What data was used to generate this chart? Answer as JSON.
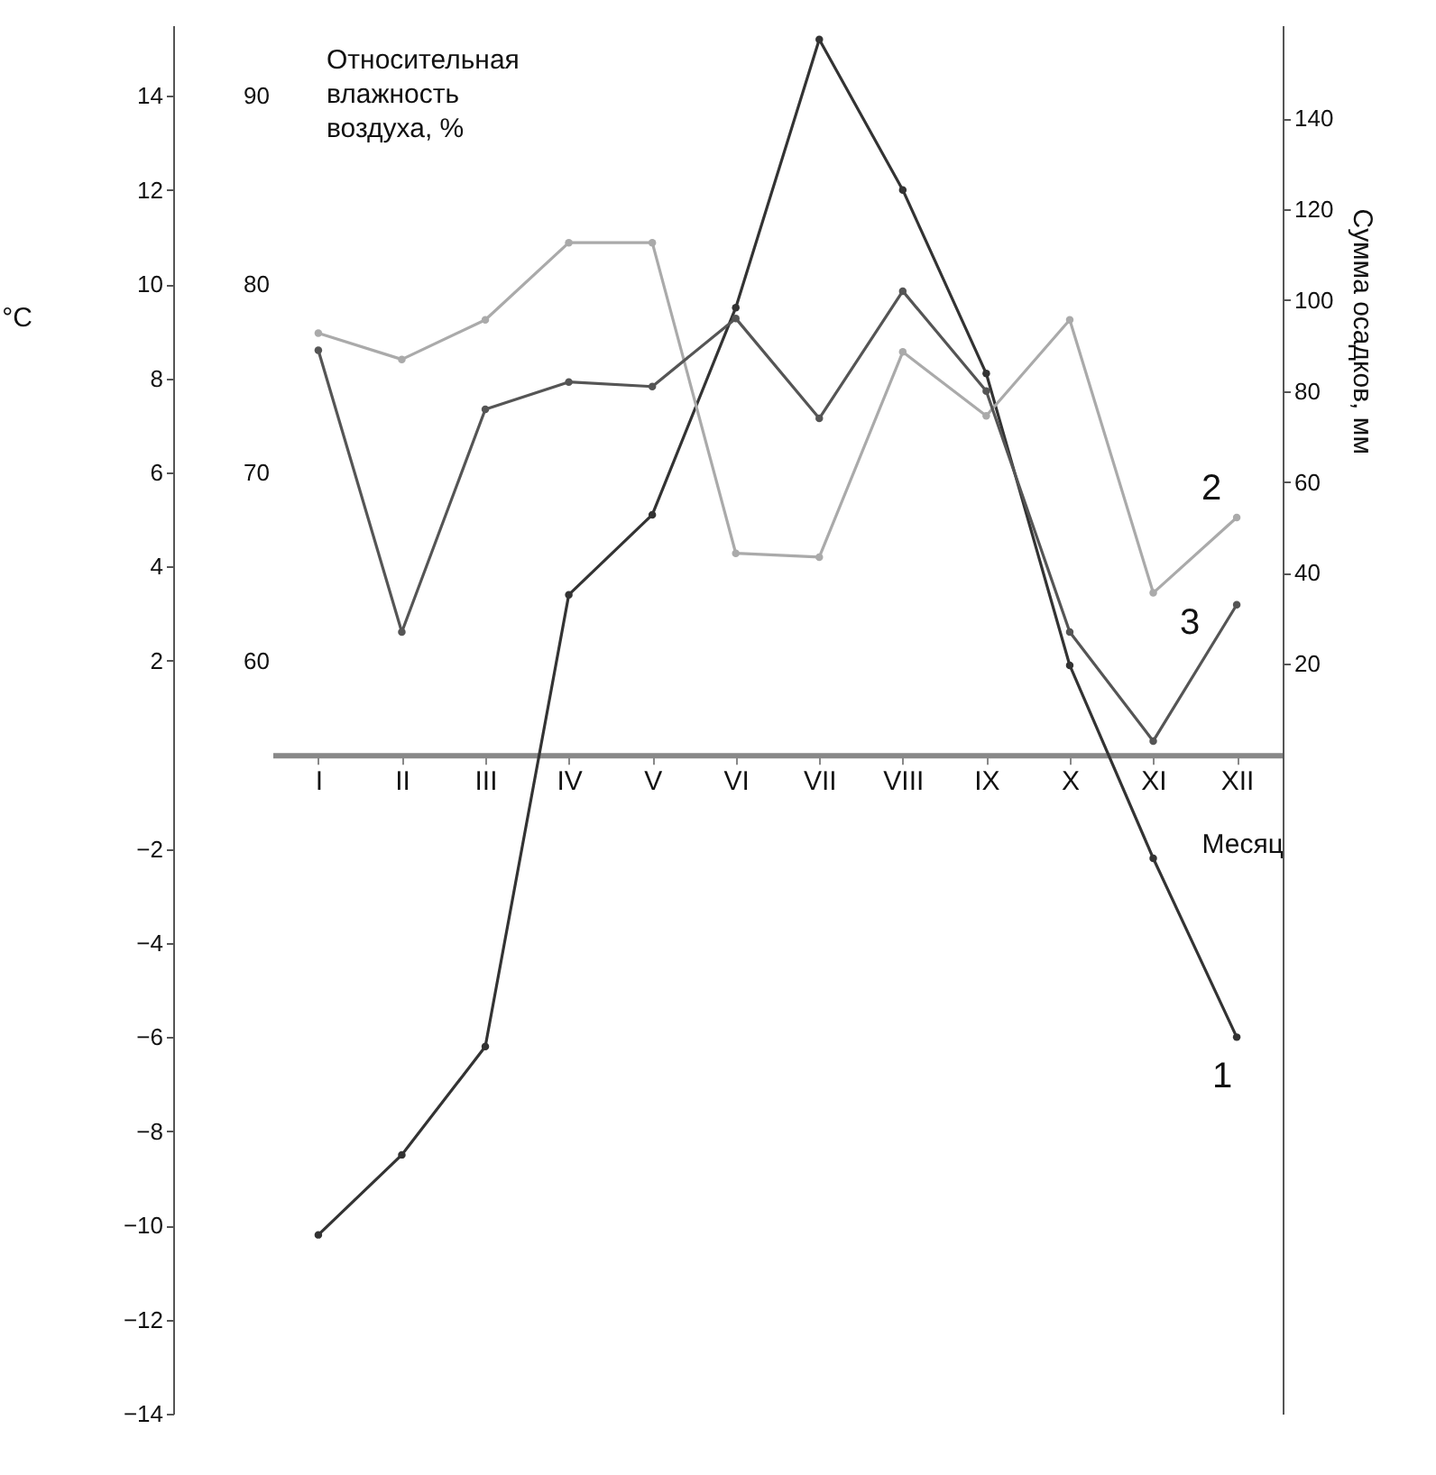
{
  "chart_data": {
    "type": "line",
    "xlabel": "Месяц",
    "ylabel": "°C",
    "y2label": "Относительная влажность воздуха, %",
    "y3label": "Сумма осадков, мм",
    "categories": [
      "I",
      "II",
      "III",
      "IV",
      "V",
      "VI",
      "VII",
      "VIII",
      "IX",
      "X",
      "XI",
      "XII"
    ],
    "series": [
      {
        "name": "1",
        "color": "#333333",
        "values": [
          -10.2,
          -8.5,
          -6.2,
          3.4,
          5.1,
          9.5,
          15.2,
          12.0,
          8.1,
          1.9,
          -2.2,
          -6.0
        ]
      },
      {
        "name": "2",
        "color": "#aaaaaa",
        "axis": "y2",
        "values": [
          77.4,
          76.0,
          78.1,
          82.2,
          82.2,
          65.7,
          65.5,
          76.4,
          73.0,
          78.1,
          63.6,
          67.6
        ]
      },
      {
        "name": "3",
        "color": "#555555",
        "axis": "y3",
        "values": [
          89,
          27,
          76,
          82,
          81,
          96,
          74,
          102,
          80,
          27,
          3,
          33
        ]
      }
    ],
    "ylim": [
      -14,
      15.5
    ],
    "yticks": [
      -14,
      -12,
      -10,
      -8,
      -6,
      -4,
      -2,
      2,
      4,
      6,
      8,
      10,
      12,
      14
    ],
    "y2lim": [
      20,
      93.75
    ],
    "y2ticks": [
      60,
      70,
      80,
      90
    ],
    "y3lim": [
      -145,
      160.5
    ],
    "y3ticks": [
      20,
      40,
      60,
      80,
      100,
      120,
      140
    ],
    "marker": "circle",
    "line_style": "solid"
  }
}
